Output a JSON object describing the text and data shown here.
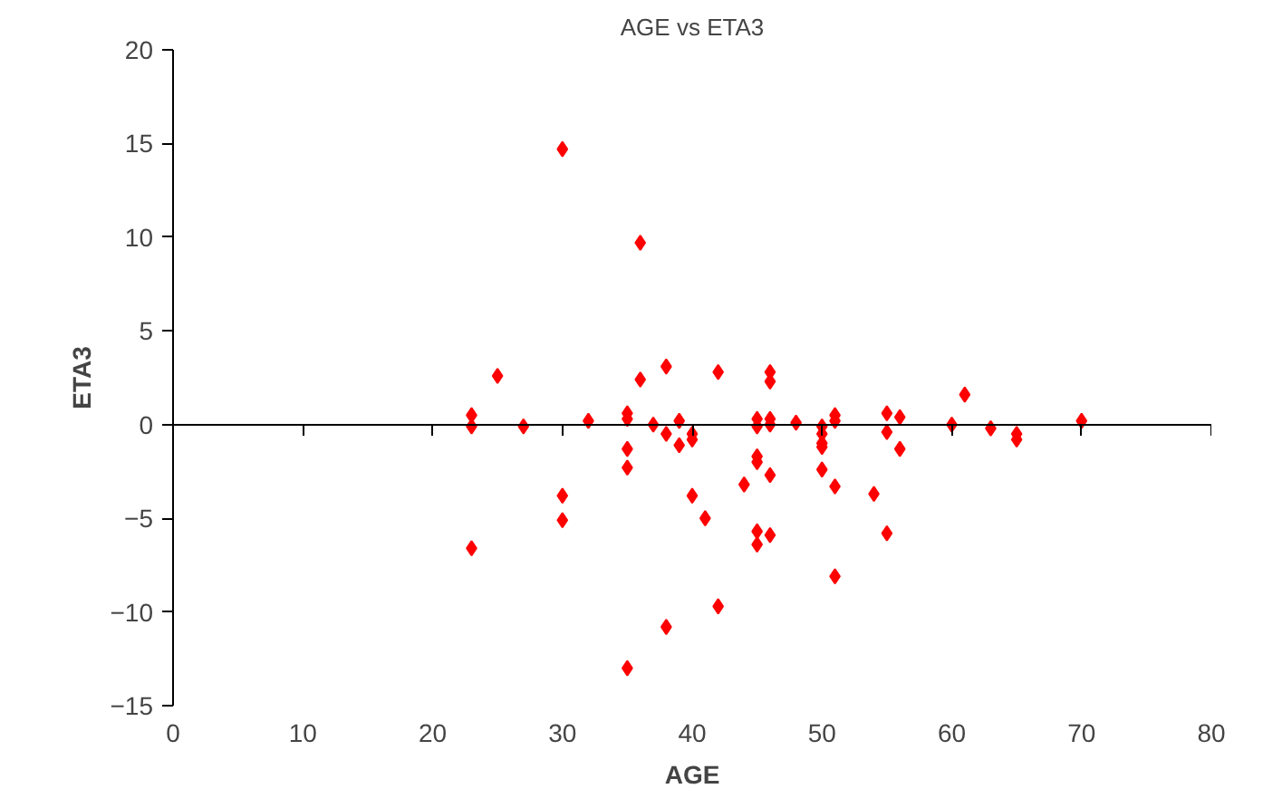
{
  "chart_data": {
    "type": "scatter",
    "title": "AGE vs ETA3",
    "xlabel": "AGE",
    "ylabel": "ETA3",
    "xlim": [
      0,
      80
    ],
    "xticks": [
      0,
      10,
      20,
      30,
      40,
      50,
      60,
      70,
      80
    ],
    "ylim": [
      -15,
      20
    ],
    "yticks": [
      -15,
      -10,
      -5,
      0,
      5,
      10,
      15,
      20
    ],
    "marker": "diamond",
    "series": [
      {
        "color": "#ff0000",
        "x": [
          23,
          23,
          23,
          25,
          27,
          30,
          30,
          30,
          32,
          35,
          35,
          35,
          35,
          35,
          36,
          36,
          37,
          38,
          38,
          38,
          39,
          39,
          40,
          40,
          40,
          41,
          42,
          42,
          44,
          45,
          45,
          45,
          45,
          45,
          45,
          46,
          46,
          46,
          46,
          46,
          46,
          48,
          50,
          50,
          50,
          50,
          50,
          51,
          51,
          51,
          51,
          54,
          55,
          55,
          55,
          56,
          56,
          60,
          61,
          63,
          65,
          65,
          70
        ],
        "values": [
          0.5,
          -0.1,
          -6.6,
          2.6,
          -0.1,
          14.7,
          -3.8,
          -5.1,
          0.2,
          0.6,
          0.3,
          -1.3,
          -2.3,
          -13,
          9.7,
          2.4,
          0,
          3.1,
          -0.5,
          -10.8,
          0.2,
          -1.1,
          -0.5,
          -0.8,
          -3.8,
          -5,
          2.8,
          -9.7,
          -3.2,
          0.3,
          -0.1,
          -1.7,
          -2,
          -5.7,
          -6.4,
          2.8,
          2.3,
          0.3,
          0,
          -2.7,
          -5.9,
          0.1,
          -0.1,
          -0.5,
          -1,
          -1.2,
          -2.4,
          0.5,
          0.2,
          -3.3,
          -8.1,
          -3.7,
          0.6,
          -0.4,
          -5.8,
          0.4,
          -1.3,
          0,
          1.6,
          -0.2,
          -0.5,
          -0.8,
          0.2
        ]
      }
    ]
  }
}
